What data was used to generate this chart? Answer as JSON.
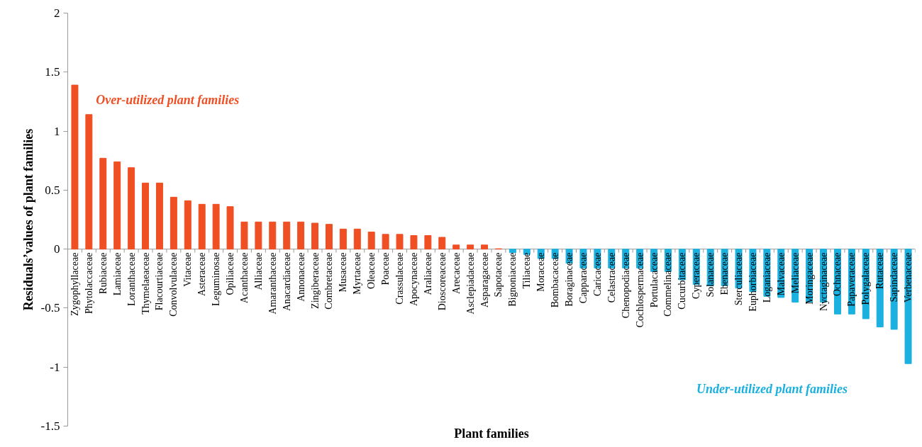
{
  "chart_data": {
    "type": "bar",
    "xlabel": "Plant families",
    "ylabel": "Residuals’values of plant families",
    "categories": [
      "Zygophyllaceae",
      "Phytolaccaceae",
      "Rubiaceae",
      "Lamiaceae",
      "Loranthaceae",
      "Thymelaeaceae",
      "Flacourtiaceae",
      "Convolvulaceae",
      "Vitaceae",
      "Asteraceae",
      "Leguminosae",
      "Opiliaceae",
      "Acanthaceae",
      "Alliaceae",
      "Amaranthaceae",
      "Anacardiaceae",
      "Annonaceae",
      "Zingiberaceae",
      "Combretaceae",
      "Musaceae",
      "Myrtaceae",
      "Oleaceae",
      "Poaceae",
      "Crassulaceae",
      "Apocynaceae",
      "Araliaceae",
      "Dioscoreaceae",
      "Arecaceae",
      "Asclepiadaceae",
      "Asparagaceae",
      "Sapotaceae",
      "Bignoniaceae",
      "Tiliaceae",
      "Moraceae",
      "Bombacaceae",
      "Boraginaceae",
      "Capparaceae",
      "Caricaceae",
      "Celastraceae",
      "Chenopodiaceae",
      "Cochlospermaceae",
      "Portulacaceae",
      "Commelinaceae",
      "Cucurbitaceae",
      "Cyperaceae",
      "Solanaceae",
      "Ebenaceae",
      "Sterculiaceae",
      "Euphorbiaceae",
      "Loganiaceae",
      "Malvaceae",
      "Meliaceae",
      "Moringaceae",
      "Nyctaginaceae",
      "Ochnaceae",
      "Papaveraceae",
      "Polygalaceae",
      "Rutaceae",
      "Sapindaceae",
      "Verbenaceae"
    ],
    "values": [
      1.39,
      1.14,
      0.77,
      0.74,
      0.69,
      0.56,
      0.56,
      0.44,
      0.41,
      0.38,
      0.38,
      0.36,
      0.23,
      0.23,
      0.23,
      0.23,
      0.23,
      0.22,
      0.21,
      0.17,
      0.17,
      0.145,
      0.125,
      0.125,
      0.115,
      0.115,
      0.1,
      0.035,
      0.035,
      0.035,
      0.003,
      -0.03,
      -0.045,
      -0.08,
      -0.08,
      -0.12,
      -0.16,
      -0.16,
      -0.16,
      -0.16,
      -0.16,
      -0.19,
      -0.19,
      -0.26,
      -0.3,
      -0.31,
      -0.31,
      -0.33,
      -0.36,
      -0.4,
      -0.41,
      -0.45,
      -0.45,
      -0.45,
      -0.55,
      -0.55,
      -0.59,
      -0.66,
      -0.68,
      -0.97
    ],
    "colors": [
      "#f04e23",
      "#f04e23",
      "#f04e23",
      "#f04e23",
      "#f04e23",
      "#f04e23",
      "#f04e23",
      "#f04e23",
      "#f04e23",
      "#f04e23",
      "#f04e23",
      "#f04e23",
      "#f04e23",
      "#f04e23",
      "#f04e23",
      "#f04e23",
      "#f04e23",
      "#f04e23",
      "#f04e23",
      "#f04e23",
      "#f04e23",
      "#f04e23",
      "#f04e23",
      "#f04e23",
      "#f04e23",
      "#f04e23",
      "#f04e23",
      "#f04e23",
      "#f04e23",
      "#f04e23",
      "#f04e23",
      "#1ab0e0",
      "#1ab0e0",
      "#1ab0e0",
      "#1ab0e0",
      "#1ab0e0",
      "#1ab0e0",
      "#1ab0e0",
      "#1ab0e0",
      "#1ab0e0",
      "#1ab0e0",
      "#1ab0e0",
      "#1ab0e0",
      "#1ab0e0",
      "#1ab0e0",
      "#1ab0e0",
      "#1ab0e0",
      "#1ab0e0",
      "#1ab0e0",
      "#1ab0e0",
      "#1ab0e0",
      "#1ab0e0",
      "#1ab0e0",
      "#1ab0e0",
      "#1ab0e0",
      "#1ab0e0",
      "#1ab0e0",
      "#1ab0e0",
      "#1ab0e0",
      "#1ab0e0"
    ],
    "annotations": [
      "Over-utilized plant families",
      "Under-utilized plant families"
    ],
    "ylim": [
      -1.5,
      2
    ],
    "yticks": [
      -1.5,
      -1,
      -0.5,
      0,
      0.5,
      1,
      1.5,
      2
    ],
    "grid": false
  }
}
